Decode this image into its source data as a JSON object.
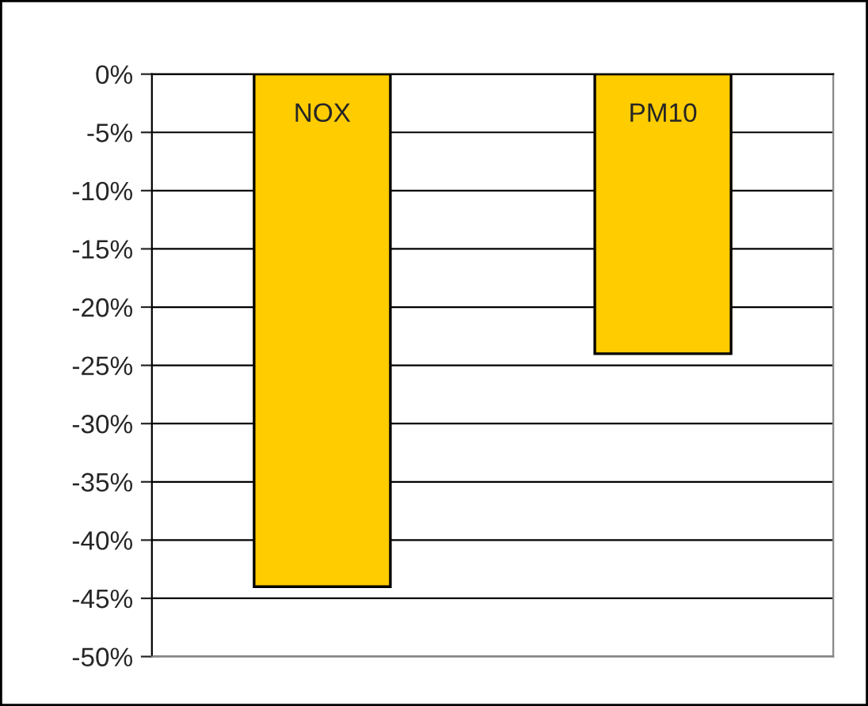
{
  "chart_data": {
    "type": "bar",
    "categories": [
      "NOX",
      "PM10"
    ],
    "values": [
      -44,
      -24
    ],
    "color": "#ffcc00",
    "ylim": [
      -50,
      0
    ],
    "yticks": [
      {
        "value": 0,
        "label": "0%"
      },
      {
        "value": -5,
        "label": "-5%"
      },
      {
        "value": -10,
        "label": "-10%"
      },
      {
        "value": -15,
        "label": "-15%"
      },
      {
        "value": -20,
        "label": "-20%"
      },
      {
        "value": -25,
        "label": "-25%"
      },
      {
        "value": -30,
        "label": "-30%"
      },
      {
        "value": -35,
        "label": "-35%"
      },
      {
        "value": -40,
        "label": "-40%"
      },
      {
        "value": -45,
        "label": "-45%"
      },
      {
        "value": -50,
        "label": "-50%"
      }
    ],
    "grid": "y"
  }
}
